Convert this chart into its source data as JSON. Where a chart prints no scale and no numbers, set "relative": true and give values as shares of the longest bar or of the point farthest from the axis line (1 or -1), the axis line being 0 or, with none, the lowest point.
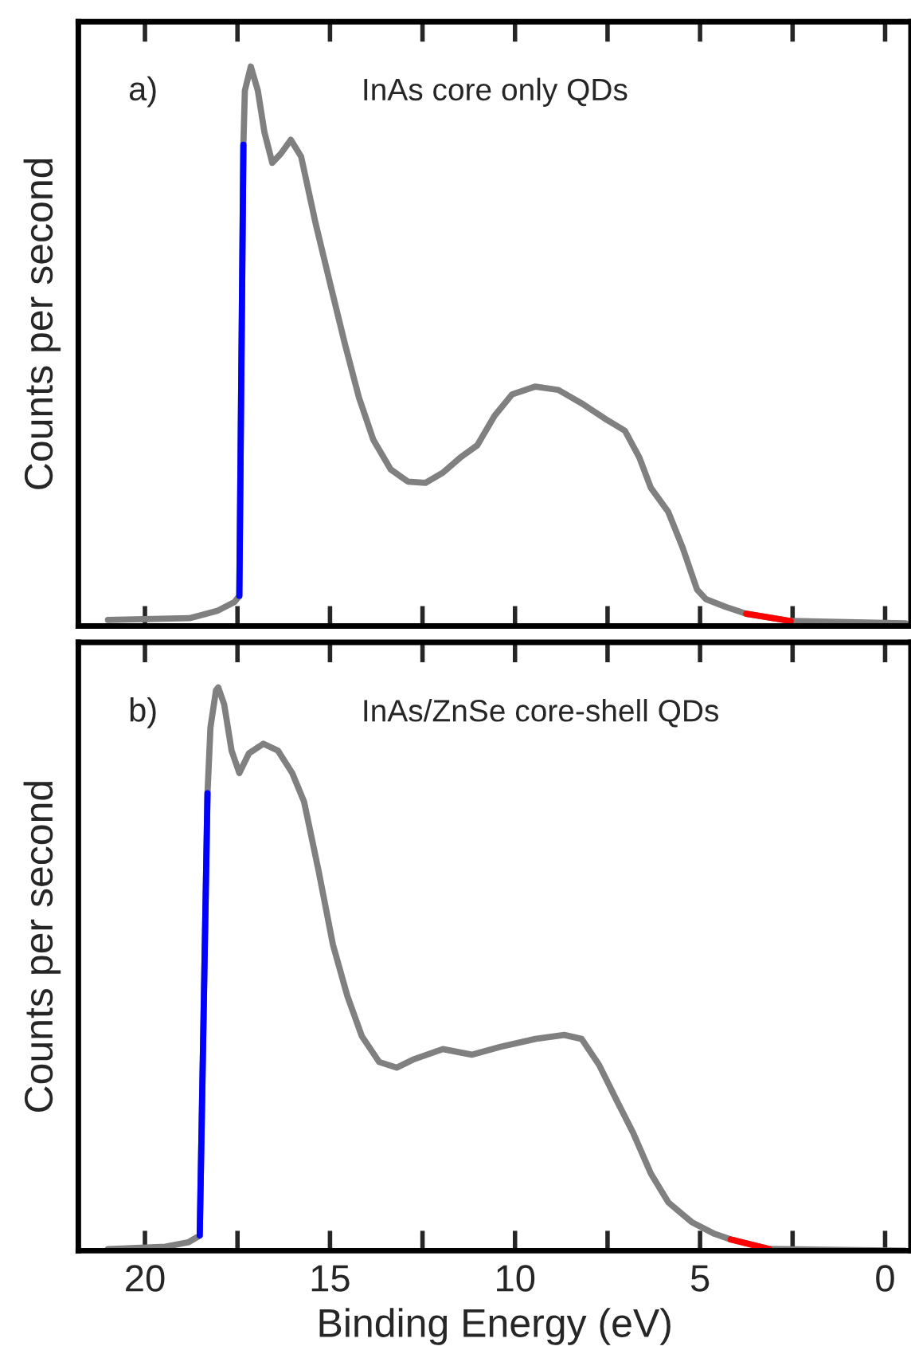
{
  "chart_data": [
    {
      "type": "line",
      "ylabel": "Counts per second",
      "relative": true,
      "tick_labels": false,
      "xlim": [
        21.8,
        -0.7
      ],
      "xticks": [
        {
          "value": 20,
          "label": null
        },
        {
          "value": 17.5,
          "label": null
        },
        {
          "value": 15,
          "label": null
        },
        {
          "value": 12.5,
          "label": null
        },
        {
          "value": 10,
          "label": null
        },
        {
          "value": 7.5,
          "label": null
        },
        {
          "value": 5,
          "label": null
        },
        {
          "value": 2.5,
          "label": null
        },
        {
          "value": 0,
          "label": null
        }
      ],
      "annotations": [
        "a)",
        "InAs core only QDs"
      ],
      "marker": "none",
      "line_style": "solid",
      "series": [
        {
          "color": "#808080",
          "x": [
            21.0,
            18.8,
            18.05,
            17.58,
            17.45,
            17.34,
            17.3,
            17.14,
            16.95,
            16.77,
            16.56,
            16.33,
            16.06,
            15.78,
            15.39,
            15.0,
            14.6,
            14.22,
            13.83,
            13.36,
            12.89,
            12.42,
            11.95,
            11.48,
            11.02,
            10.55,
            10.08,
            9.45,
            8.83,
            8.2,
            7.58,
            7.03,
            6.64,
            6.33,
            5.86,
            5.47,
            5.08,
            4.84,
            4.3,
            3.75,
            2.55,
            -0.55
          ],
          "values": [
            0.011,
            0.014,
            0.027,
            0.043,
            0.054,
            0.86,
            0.957,
            1.0,
            0.957,
            0.882,
            0.828,
            0.844,
            0.869,
            0.839,
            0.72,
            0.613,
            0.505,
            0.409,
            0.333,
            0.28,
            0.258,
            0.256,
            0.274,
            0.301,
            0.323,
            0.376,
            0.414,
            0.428,
            0.422,
            0.398,
            0.371,
            0.349,
            0.301,
            0.247,
            0.204,
            0.14,
            0.065,
            0.048,
            0.034,
            0.022,
            0.009,
            0.005
          ]
        },
        {
          "color": "#0000ff",
          "x": [
            17.45,
            17.34
          ],
          "values": [
            0.054,
            0.86
          ]
        },
        {
          "color": "#ff0000",
          "x": [
            3.75,
            2.55
          ],
          "values": [
            0.022,
            0.009
          ]
        }
      ]
    },
    {
      "type": "line",
      "ylabel": "Counts per second",
      "xlabel": "Binding Energy (eV)",
      "relative": true,
      "tick_labels": "x",
      "xlim": [
        21.8,
        -0.7
      ],
      "xticks": [
        20,
        {
          "value": 17.5,
          "label": null
        },
        15,
        {
          "value": 12.5,
          "label": null
        },
        10,
        {
          "value": 7.5,
          "label": null
        },
        5,
        {
          "value": 2.5,
          "label": null
        },
        0
      ],
      "annotations": [
        "b)",
        "InAs/ZnSe core-shell QDs"
      ],
      "marker": "none",
      "line_style": "solid",
      "series": [
        {
          "color": "#808080",
          "x": [
            21.0,
            19.45,
            18.83,
            18.52,
            18.31,
            18.23,
            18.08,
            18.02,
            17.86,
            17.66,
            17.45,
            17.19,
            16.8,
            16.41,
            16.02,
            15.7,
            15.31,
            14.92,
            14.53,
            14.14,
            13.67,
            13.2,
            12.73,
            11.95,
            11.17,
            10.39,
            9.45,
            8.67,
            8.2,
            7.73,
            7.27,
            6.8,
            6.33,
            5.86,
            5.23,
            4.61,
            4.17,
            3.13,
            -0.55
          ],
          "values": [
            0.003,
            0.007,
            0.015,
            0.027,
            0.812,
            0.929,
            0.995,
            1.0,
            0.97,
            0.888,
            0.848,
            0.883,
            0.9,
            0.888,
            0.848,
            0.797,
            0.675,
            0.543,
            0.452,
            0.381,
            0.335,
            0.325,
            0.34,
            0.358,
            0.348,
            0.362,
            0.376,
            0.383,
            0.376,
            0.33,
            0.269,
            0.208,
            0.137,
            0.086,
            0.051,
            0.03,
            0.02,
            0.003,
            0.0
          ]
        },
        {
          "color": "#0000ff",
          "x": [
            18.52,
            18.31
          ],
          "values": [
            0.027,
            0.812
          ]
        },
        {
          "color": "#ff0000",
          "x": [
            4.17,
            3.13
          ],
          "values": [
            0.02,
            0.003
          ]
        }
      ]
    }
  ]
}
